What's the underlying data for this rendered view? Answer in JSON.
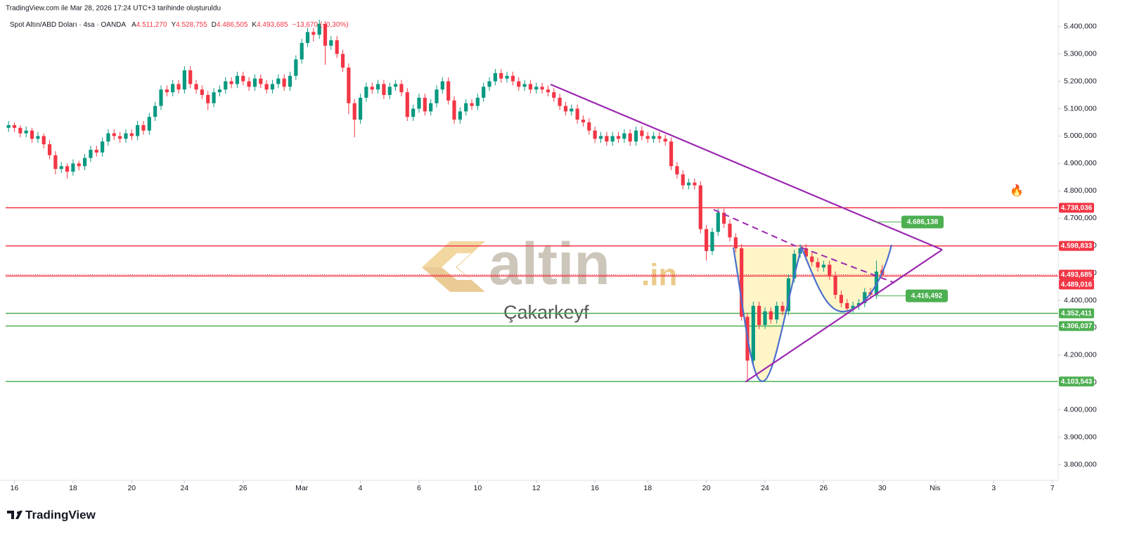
{
  "chart_data": {
    "type": "candlestick",
    "header": "TradingView.com ile Mar 28, 2026 17:24 UTC+3 tarihinde oluşturuldu",
    "symbol": "Spot Altın/ABD Doları · 4sa · OANDA",
    "ohlc_legend": [
      {
        "key": "A",
        "value": "4.511,270"
      },
      {
        "key": "Y",
        "value": "4.528,755"
      },
      {
        "key": "D",
        "value": "4.486,505"
      },
      {
        "key": "K",
        "value": "4.493,685"
      }
    ],
    "change": "−13,670 (−0,30%)",
    "up_color": "#089981",
    "down_color": "#f23645",
    "xlim": [
      -0.5,
      179
    ],
    "ylim": [
      3750,
      5425
    ],
    "xticks": [
      {
        "value": 1,
        "label": "16"
      },
      {
        "value": 11,
        "label": "18"
      },
      {
        "value": 21,
        "label": "20"
      },
      {
        "value": 30,
        "label": "24"
      },
      {
        "value": 40,
        "label": "26"
      },
      {
        "value": 50,
        "label": "Mar"
      },
      {
        "value": 60,
        "label": "4"
      },
      {
        "value": 70,
        "label": "6"
      },
      {
        "value": 80,
        "label": "10"
      },
      {
        "value": 90,
        "label": "12"
      },
      {
        "value": 100,
        "label": "16"
      },
      {
        "value": 109,
        "label": "18"
      },
      {
        "value": 119,
        "label": "20"
      },
      {
        "value": 129,
        "label": "24"
      },
      {
        "value": 139,
        "label": "26"
      },
      {
        "value": 149,
        "label": "30"
      },
      {
        "value": 158,
        "label": "Nis"
      },
      {
        "value": 168,
        "label": "3"
      },
      {
        "value": 178,
        "label": "7"
      }
    ],
    "yticks": [
      {
        "value": 5400,
        "label": "5.400,000"
      },
      {
        "value": 5300,
        "label": "5.300,000"
      },
      {
        "value": 5200,
        "label": "5.200,000"
      },
      {
        "value": 5100,
        "label": "5.100,000"
      },
      {
        "value": 5000,
        "label": "5.000,000"
      },
      {
        "value": 4900,
        "label": "4.900,000"
      },
      {
        "value": 4800,
        "label": "4.800,000"
      },
      {
        "value": 4700,
        "label": "4.700,000"
      },
      {
        "value": 4600,
        "label": "4.600,000"
      },
      {
        "value": 4500,
        "label": "4.500,000"
      },
      {
        "value": 4400,
        "label": "4.400,000"
      },
      {
        "value": 4300,
        "label": "4.300,000"
      },
      {
        "value": 4200,
        "label": "4.200,000"
      },
      {
        "value": 4100,
        "label": "4.100,000"
      },
      {
        "value": 4000,
        "label": "4.000,000"
      },
      {
        "value": 3900,
        "label": "3.900,000"
      },
      {
        "value": 3800,
        "label": "3.800,000"
      }
    ],
    "levels": [
      {
        "value": 4738.036,
        "label": "4.738,036",
        "color": "#f23645"
      },
      {
        "value": 4598.833,
        "label": "4.598,833",
        "color": "#f23645"
      },
      {
        "value": 4489.016,
        "label": "4.489,016",
        "color": "#f23645"
      },
      {
        "value": 4352.411,
        "label": "4.352,411",
        "color": "#4caf50"
      },
      {
        "value": 4306.037,
        "label": "4.306,037",
        "color": "#4caf50"
      },
      {
        "value": 4103.543,
        "label": "4.103,543",
        "color": "#4caf50"
      }
    ],
    "last_price": {
      "value": 4493.685,
      "label": "4.493,685",
      "color": "#f23645"
    },
    "annotations": [
      {
        "value": 4686.138,
        "label": "4.686,138",
        "color": "#4caf50"
      },
      {
        "value": 4416.492,
        "label": "4.416,492",
        "color": "#4caf50"
      }
    ],
    "watermark": {
      "brand": "altin",
      "suffix": ".in",
      "author": "Çakarkeyf"
    },
    "icon": "🔥",
    "footer": "TradingView",
    "ohlc": [
      [
        5030,
        5055,
        5015,
        5040
      ],
      [
        5040,
        5050,
        5015,
        5030
      ],
      [
        5030,
        5040,
        4995,
        5010
      ],
      [
        5010,
        5035,
        4995,
        5020
      ],
      [
        5020,
        5030,
        4975,
        4990
      ],
      [
        4990,
        5015,
        4975,
        5000
      ],
      [
        5000,
        5010,
        4955,
        4970
      ],
      [
        4970,
        4985,
        4915,
        4930
      ],
      [
        4930,
        4945,
        4860,
        4880
      ],
      [
        4880,
        4905,
        4865,
        4890
      ],
      [
        4890,
        4900,
        4845,
        4870
      ],
      [
        4870,
        4915,
        4855,
        4900
      ],
      [
        4900,
        4910,
        4875,
        4890
      ],
      [
        4890,
        4935,
        4875,
        4920
      ],
      [
        4920,
        4965,
        4905,
        4950
      ],
      [
        4950,
        4965,
        4925,
        4940
      ],
      [
        4940,
        4995,
        4925,
        4980
      ],
      [
        4980,
        5025,
        4965,
        5010
      ],
      [
        5010,
        5025,
        4985,
        5000
      ],
      [
        5000,
        5015,
        4975,
        4990
      ],
      [
        4990,
        5025,
        4975,
        5010
      ],
      [
        5010,
        5025,
        4985,
        5000
      ],
      [
        5000,
        5055,
        4985,
        5040
      ],
      [
        5040,
        5055,
        5005,
        5020
      ],
      [
        5020,
        5085,
        5005,
        5070
      ],
      [
        5070,
        5125,
        5055,
        5110
      ],
      [
        5110,
        5185,
        5095,
        5170
      ],
      [
        5170,
        5185,
        5145,
        5160
      ],
      [
        5160,
        5205,
        5145,
        5190
      ],
      [
        5190,
        5205,
        5155,
        5170
      ],
      [
        5170,
        5255,
        5155,
        5240
      ],
      [
        5240,
        5255,
        5175,
        5190
      ],
      [
        5190,
        5205,
        5155,
        5170
      ],
      [
        5170,
        5185,
        5135,
        5150
      ],
      [
        5150,
        5165,
        5095,
        5120
      ],
      [
        5120,
        5175,
        5105,
        5160
      ],
      [
        5160,
        5185,
        5145,
        5170
      ],
      [
        5170,
        5215,
        5155,
        5200
      ],
      [
        5200,
        5215,
        5175,
        5190
      ],
      [
        5190,
        5235,
        5175,
        5220
      ],
      [
        5220,
        5235,
        5185,
        5200
      ],
      [
        5200,
        5215,
        5165,
        5180
      ],
      [
        5180,
        5225,
        5165,
        5210
      ],
      [
        5210,
        5225,
        5175,
        5190
      ],
      [
        5190,
        5205,
        5155,
        5170
      ],
      [
        5170,
        5205,
        5155,
        5190
      ],
      [
        5190,
        5225,
        5175,
        5210
      ],
      [
        5210,
        5225,
        5165,
        5180
      ],
      [
        5180,
        5235,
        5165,
        5220
      ],
      [
        5220,
        5295,
        5205,
        5280
      ],
      [
        5280,
        5355,
        5265,
        5340
      ],
      [
        5340,
        5395,
        5325,
        5380
      ],
      [
        5380,
        5395,
        5345,
        5370
      ],
      [
        5370,
        5425,
        5355,
        5410
      ],
      [
        5410,
        5420,
        5260,
        5330
      ],
      [
        5330,
        5365,
        5315,
        5350
      ],
      [
        5350,
        5365,
        5285,
        5300
      ],
      [
        5300,
        5315,
        5235,
        5250
      ],
      [
        5250,
        5265,
        5080,
        5120
      ],
      [
        5120,
        5135,
        4995,
        5060
      ],
      [
        5060,
        5155,
        5045,
        5140
      ],
      [
        5140,
        5195,
        5125,
        5180
      ],
      [
        5180,
        5195,
        5155,
        5170
      ],
      [
        5170,
        5205,
        5155,
        5190
      ],
      [
        5190,
        5205,
        5135,
        5150
      ],
      [
        5150,
        5195,
        5135,
        5180
      ],
      [
        5180,
        5205,
        5165,
        5190
      ],
      [
        5190,
        5205,
        5145,
        5160
      ],
      [
        5160,
        5175,
        5055,
        5070
      ],
      [
        5070,
        5115,
        5055,
        5100
      ],
      [
        5100,
        5155,
        5085,
        5140
      ],
      [
        5140,
        5155,
        5075,
        5090
      ],
      [
        5090,
        5135,
        5075,
        5120
      ],
      [
        5120,
        5185,
        5105,
        5170
      ],
      [
        5170,
        5215,
        5155,
        5200
      ],
      [
        5200,
        5215,
        5115,
        5130
      ],
      [
        5130,
        5145,
        5045,
        5060
      ],
      [
        5060,
        5105,
        5045,
        5090
      ],
      [
        5090,
        5135,
        5075,
        5120
      ],
      [
        5120,
        5135,
        5095,
        5110
      ],
      [
        5110,
        5155,
        5095,
        5140
      ],
      [
        5140,
        5195,
        5125,
        5180
      ],
      [
        5180,
        5215,
        5165,
        5200
      ],
      [
        5200,
        5245,
        5185,
        5230
      ],
      [
        5230,
        5245,
        5195,
        5210
      ],
      [
        5210,
        5235,
        5195,
        5220
      ],
      [
        5220,
        5235,
        5185,
        5200
      ],
      [
        5200,
        5215,
        5165,
        5180
      ],
      [
        5180,
        5205,
        5165,
        5190
      ],
      [
        5190,
        5205,
        5155,
        5170
      ],
      [
        5170,
        5195,
        5155,
        5180
      ],
      [
        5180,
        5195,
        5155,
        5170
      ],
      [
        5170,
        5185,
        5145,
        5160
      ],
      [
        5160,
        5175,
        5125,
        5140
      ],
      [
        5140,
        5155,
        5095,
        5110
      ],
      [
        5110,
        5125,
        5075,
        5090
      ],
      [
        5090,
        5115,
        5075,
        5100
      ],
      [
        5100,
        5115,
        5045,
        5060
      ],
      [
        5060,
        5075,
        5035,
        5050
      ],
      [
        5050,
        5065,
        5005,
        5020
      ],
      [
        5020,
        5035,
        4975,
        4990
      ],
      [
        4990,
        5015,
        4975,
        5000
      ],
      [
        5000,
        5015,
        4965,
        4980
      ],
      [
        4980,
        5015,
        4965,
        5000
      ],
      [
        5000,
        5015,
        4975,
        4990
      ],
      [
        4990,
        5025,
        4975,
        5010
      ],
      [
        5010,
        5025,
        4965,
        4980
      ],
      [
        4980,
        5035,
        4965,
        5020
      ],
      [
        5020,
        5035,
        4985,
        5000
      ],
      [
        5000,
        5015,
        4975,
        4990
      ],
      [
        4990,
        5015,
        4975,
        5000
      ],
      [
        5000,
        5015,
        4975,
        4990
      ],
      [
        4990,
        5005,
        4965,
        4980
      ],
      [
        4980,
        4995,
        4875,
        4890
      ],
      [
        4890,
        4905,
        4845,
        4860
      ],
      [
        4860,
        4875,
        4805,
        4820
      ],
      [
        4820,
        4845,
        4805,
        4830
      ],
      [
        4830,
        4845,
        4805,
        4820
      ],
      [
        4820,
        4835,
        4645,
        4660
      ],
      [
        4660,
        4675,
        4545,
        4580
      ],
      [
        4580,
        4665,
        4565,
        4650
      ],
      [
        4650,
        4735,
        4635,
        4720
      ],
      [
        4720,
        4735,
        4665,
        4680
      ],
      [
        4680,
        4695,
        4615,
        4630
      ],
      [
        4630,
        4645,
        4575,
        4590
      ],
      [
        4590,
        4605,
        4325,
        4340
      ],
      [
        4340,
        4355,
        4103.543,
        4180
      ],
      [
        4180,
        4395,
        4165,
        4380
      ],
      [
        4380,
        4395,
        4295,
        4310
      ],
      [
        4310,
        4375,
        4295,
        4360
      ],
      [
        4360,
        4375,
        4315,
        4330
      ],
      [
        4330,
        4395,
        4315,
        4380
      ],
      [
        4380,
        4395,
        4345,
        4360
      ],
      [
        4360,
        4495,
        4345,
        4480
      ],
      [
        4480,
        4585,
        4465,
        4570
      ],
      [
        4570,
        4605,
        4555,
        4590
      ],
      [
        4590,
        4605,
        4545,
        4560
      ],
      [
        4560,
        4575,
        4525,
        4540
      ],
      [
        4540,
        4555,
        4505,
        4520
      ],
      [
        4520,
        4545,
        4505,
        4530
      ],
      [
        4530,
        4545,
        4475,
        4490
      ],
      [
        4490,
        4505,
        4405,
        4420
      ],
      [
        4420,
        4435,
        4375,
        4390
      ],
      [
        4390,
        4405,
        4355,
        4370
      ],
      [
        4370,
        4395,
        4355,
        4380
      ],
      [
        4380,
        4405,
        4365,
        4390
      ],
      [
        4390,
        4445,
        4375,
        4430
      ],
      [
        4430,
        4445,
        4405,
        4420
      ],
      [
        4420,
        4545,
        4405,
        4505
      ],
      [
        4511.27,
        4528.755,
        4486.505,
        4493.685
      ]
    ]
  }
}
